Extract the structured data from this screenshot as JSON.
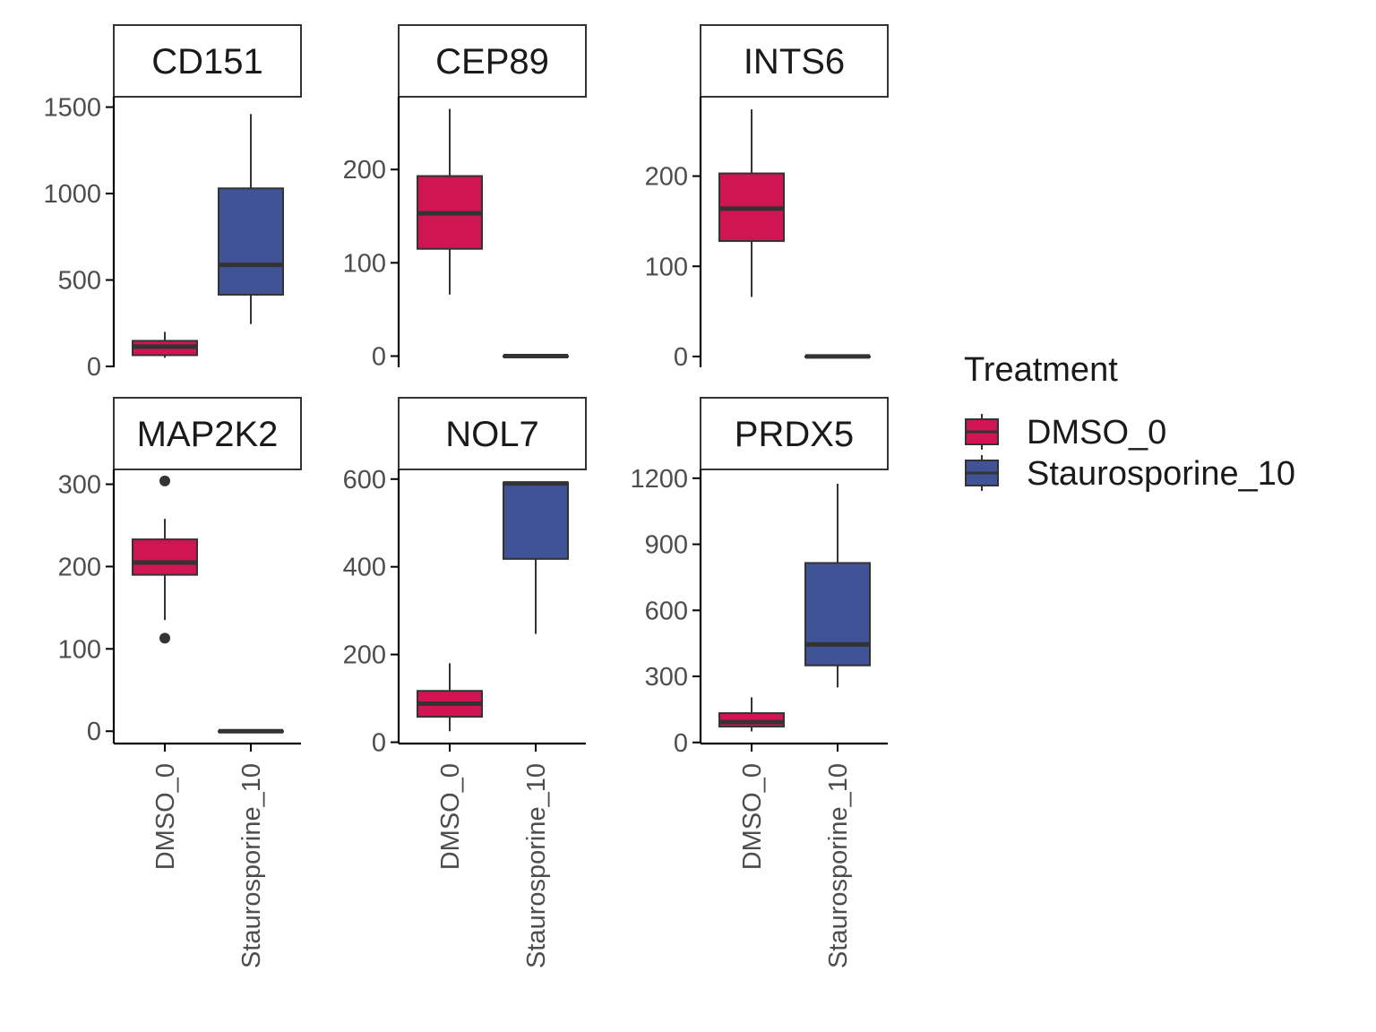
{
  "colors": {
    "DMSO_0": "#d01553",
    "Staurosporine_10": "#3f5396",
    "outline": "#333333",
    "axis": "#000000"
  },
  "legend": {
    "title": "Treatment",
    "entries": [
      "DMSO_0",
      "Staurosporine_10"
    ],
    "position": "right"
  },
  "chart_data": {
    "type": "boxplot",
    "layout": "facet-wrap 2 rows x 3 columns, free y scales",
    "categories": [
      "DMSO_0",
      "Staurosporine_10"
    ],
    "x_tick_labels": [
      "DMSO_0",
      "Staurosporine_10"
    ],
    "facets": [
      {
        "name": "CD151",
        "ylim": [
          -5,
          1560
        ],
        "y_ticks": [
          0,
          500,
          1000,
          1500
        ],
        "y_tick_labels": [
          "0",
          "500",
          "1000",
          "1500"
        ],
        "boxes": [
          {
            "group": "DMSO_0",
            "whisker_low": 50,
            "q1": 65,
            "median": 115,
            "q3": 148,
            "whisker_high": 200,
            "outliers": []
          },
          {
            "group": "Staurosporine_10",
            "whisker_low": 245,
            "q1": 415,
            "median": 588,
            "q3": 1030,
            "whisker_high": 1460,
            "outliers": []
          }
        ]
      },
      {
        "name": "CEP89",
        "ylim": [
          -12,
          278
        ],
        "y_ticks": [
          0,
          100,
          200
        ],
        "y_tick_labels": [
          "0",
          "100",
          "200"
        ],
        "boxes": [
          {
            "group": "DMSO_0",
            "whisker_low": 66,
            "q1": 115,
            "median": 153,
            "q3": 193,
            "whisker_high": 265,
            "outliers": []
          },
          {
            "group": "Staurosporine_10",
            "whisker_low": 0,
            "q1": 0,
            "median": 0,
            "q3": 0,
            "whisker_high": 0,
            "outliers": []
          }
        ]
      },
      {
        "name": "INTS6",
        "ylim": [
          -12,
          288
        ],
        "y_ticks": [
          0,
          100,
          200
        ],
        "y_tick_labels": [
          "0",
          "100",
          "200"
        ],
        "boxes": [
          {
            "group": "DMSO_0",
            "whisker_low": 66,
            "q1": 128,
            "median": 164,
            "q3": 203,
            "whisker_high": 274,
            "outliers": []
          },
          {
            "group": "Staurosporine_10",
            "whisker_low": 0,
            "q1": 0,
            "median": 0,
            "q3": 0,
            "whisker_high": 0,
            "outliers": []
          }
        ]
      },
      {
        "name": "MAP2K2",
        "ylim": [
          -15,
          318
        ],
        "y_ticks": [
          0,
          100,
          200,
          300
        ],
        "y_tick_labels": [
          "0",
          "100",
          "200",
          "300"
        ],
        "boxes": [
          {
            "group": "DMSO_0",
            "whisker_low": 135,
            "q1": 190,
            "median": 205,
            "q3": 233,
            "whisker_high": 258,
            "outliers": [
              113,
              304
            ]
          },
          {
            "group": "Staurosporine_10",
            "whisker_low": 0,
            "q1": 0,
            "median": 0,
            "q3": 0,
            "whisker_high": 0,
            "outliers": []
          }
        ]
      },
      {
        "name": "NOL7",
        "ylim": [
          -3,
          622
        ],
        "y_ticks": [
          0,
          200,
          400,
          600
        ],
        "y_tick_labels": [
          "0",
          "200",
          "400",
          "600"
        ],
        "boxes": [
          {
            "group": "DMSO_0",
            "whisker_low": 25,
            "q1": 58,
            "median": 88,
            "q3": 117,
            "whisker_high": 180,
            "outliers": []
          },
          {
            "group": "Staurosporine_10",
            "whisker_low": 247,
            "q1": 418,
            "median": 590,
            "q3": 592,
            "whisker_high": 595,
            "outliers": []
          }
        ]
      },
      {
        "name": "PRDX5",
        "ylim": [
          -5,
          1240
        ],
        "y_ticks": [
          0,
          300,
          600,
          900,
          1200
        ],
        "y_tick_labels": [
          "0",
          "300",
          "600",
          "900",
          "1200"
        ],
        "boxes": [
          {
            "group": "DMSO_0",
            "whisker_low": 50,
            "q1": 72,
            "median": 92,
            "q3": 133,
            "whisker_high": 205,
            "outliers": []
          },
          {
            "group": "Staurosporine_10",
            "whisker_low": 250,
            "q1": 350,
            "median": 445,
            "q3": 815,
            "whisker_high": 1175,
            "outliers": []
          }
        ]
      }
    ]
  }
}
